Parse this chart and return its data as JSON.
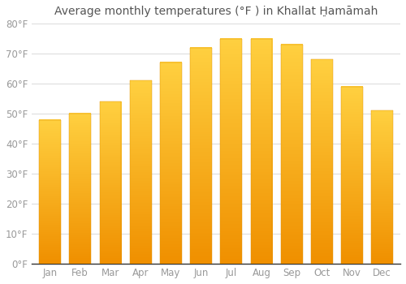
{
  "title": "Average monthly temperatures (°F ) in Khallat Ḥ̣amāmah",
  "months": [
    "Jan",
    "Feb",
    "Mar",
    "Apr",
    "May",
    "Jun",
    "Jul",
    "Aug",
    "Sep",
    "Oct",
    "Nov",
    "Dec"
  ],
  "values": [
    48,
    50,
    54,
    61,
    67,
    72,
    75,
    75,
    73,
    68,
    59,
    51
  ],
  "bar_color_light": "#FFD040",
  "bar_color_dark": "#F09000",
  "background_color": "#FFFFFF",
  "grid_color": "#DDDDDD",
  "tick_label_color": "#999999",
  "title_color": "#555555",
  "ylim": [
    0,
    80
  ],
  "ytick_step": 10,
  "title_fontsize": 10,
  "tick_fontsize": 8.5
}
